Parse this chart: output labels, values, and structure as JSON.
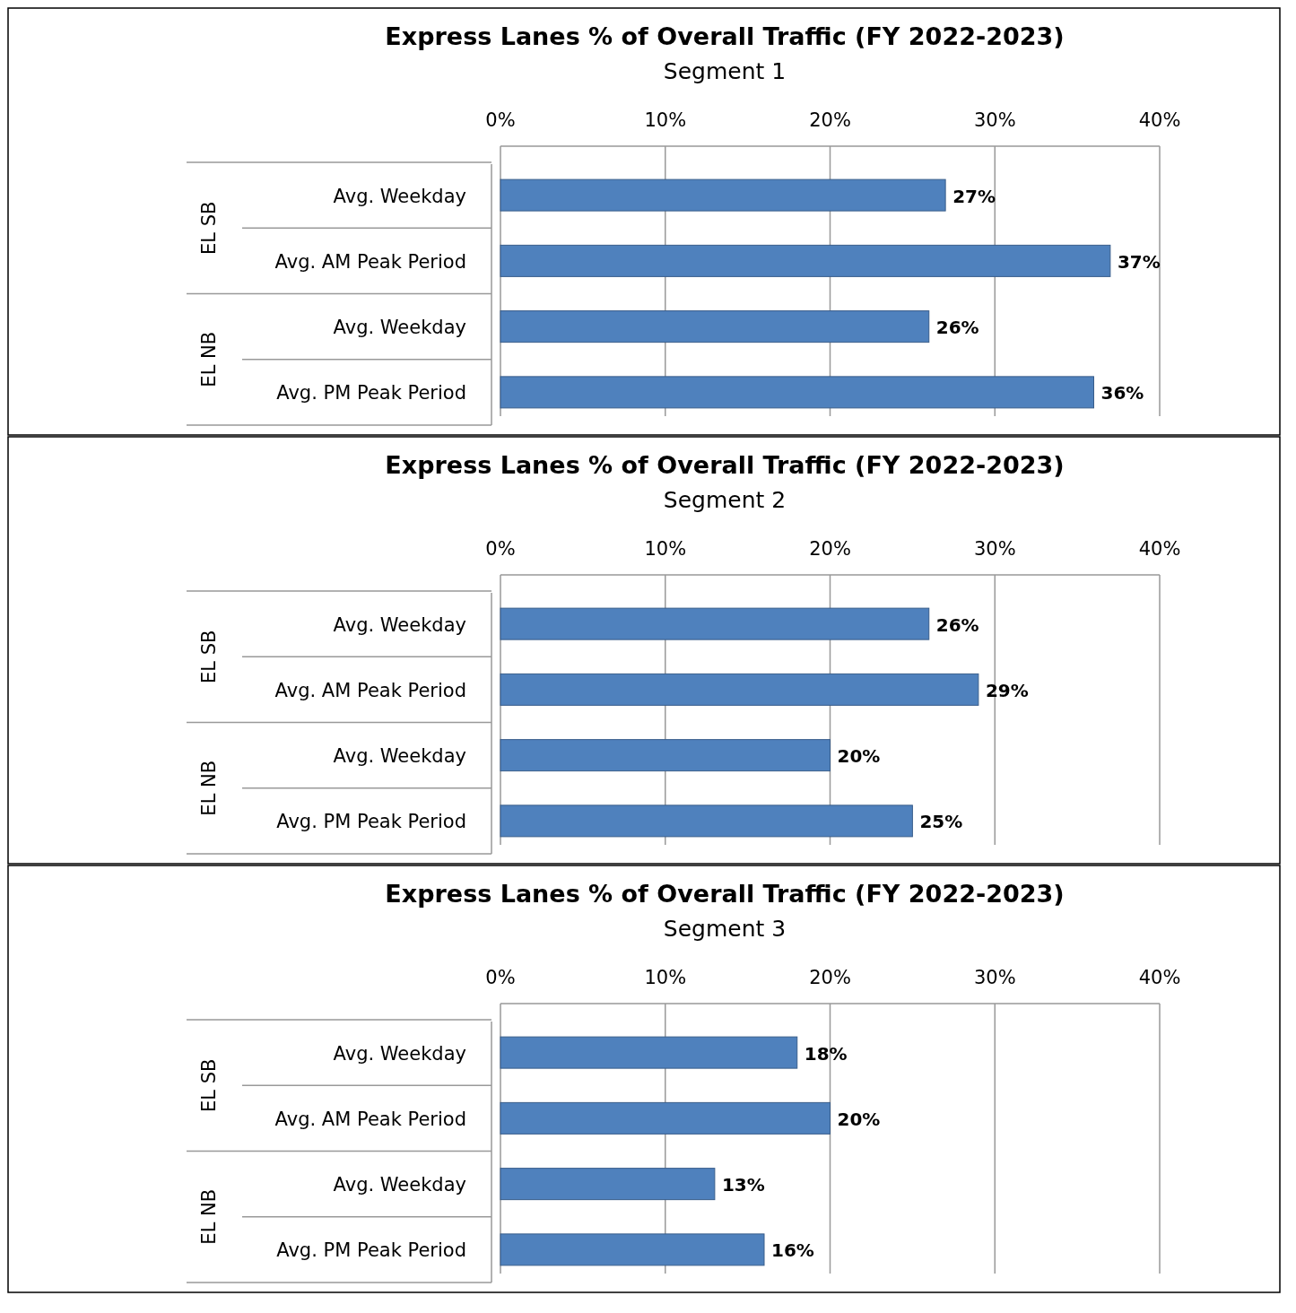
{
  "chart_data": [
    {
      "type": "bar",
      "orientation": "horizontal",
      "title": "Express Lanes % of Overall Traffic (FY 2022-2023)",
      "subtitle": "Segment 1",
      "categories": [
        "Avg. Weekday",
        "Avg. AM Peak Period",
        "Avg. Weekday",
        "Avg. PM Peak Period"
      ],
      "annotations": [
        "EL SB",
        "EL NB"
      ],
      "values": [
        27,
        37,
        26,
        36
      ],
      "value_labels": [
        "27%",
        "37%",
        "26%",
        "36%"
      ],
      "color": "#4f81bd",
      "xlim": [
        0,
        40
      ],
      "xticks": [
        {
          "value": 0,
          "label": "0%"
        },
        {
          "value": 10,
          "label": "10%"
        },
        {
          "value": 20,
          "label": "20%"
        },
        {
          "value": 30,
          "label": "30%"
        },
        {
          "value": 40,
          "label": "40%"
        }
      ],
      "grid": "x"
    },
    {
      "type": "bar",
      "orientation": "horizontal",
      "title": "Express Lanes % of Overall Traffic (FY 2022-2023)",
      "subtitle": "Segment 2",
      "categories": [
        "Avg. Weekday",
        "Avg. AM Peak Period",
        "Avg. Weekday",
        "Avg. PM Peak Period"
      ],
      "annotations": [
        "EL SB",
        "EL NB"
      ],
      "values": [
        26,
        29,
        20,
        25
      ],
      "value_labels": [
        "26%",
        "29%",
        "20%",
        "25%"
      ],
      "color": "#4f81bd",
      "xlim": [
        0,
        40
      ],
      "xticks": [
        {
          "value": 0,
          "label": "0%"
        },
        {
          "value": 10,
          "label": "10%"
        },
        {
          "value": 20,
          "label": "20%"
        },
        {
          "value": 30,
          "label": "30%"
        },
        {
          "value": 40,
          "label": "40%"
        }
      ],
      "grid": "x"
    },
    {
      "type": "bar",
      "orientation": "horizontal",
      "title": "Express Lanes % of Overall Traffic (FY 2022-2023)",
      "subtitle": "Segment 3",
      "categories": [
        "Avg. Weekday",
        "Avg. AM Peak Period",
        "Avg. Weekday",
        "Avg. PM Peak Period"
      ],
      "annotations": [
        "EL SB",
        "EL NB"
      ],
      "values": [
        18,
        20,
        13,
        16
      ],
      "value_labels": [
        "18%",
        "20%",
        "13%",
        "16%"
      ],
      "color": "#4f81bd",
      "xlim": [
        0,
        40
      ],
      "xticks": [
        {
          "value": 0,
          "label": "0%"
        },
        {
          "value": 10,
          "label": "10%"
        },
        {
          "value": 20,
          "label": "20%"
        },
        {
          "value": 30,
          "label": "30%"
        },
        {
          "value": 40,
          "label": "40%"
        }
      ],
      "grid": "x"
    }
  ]
}
